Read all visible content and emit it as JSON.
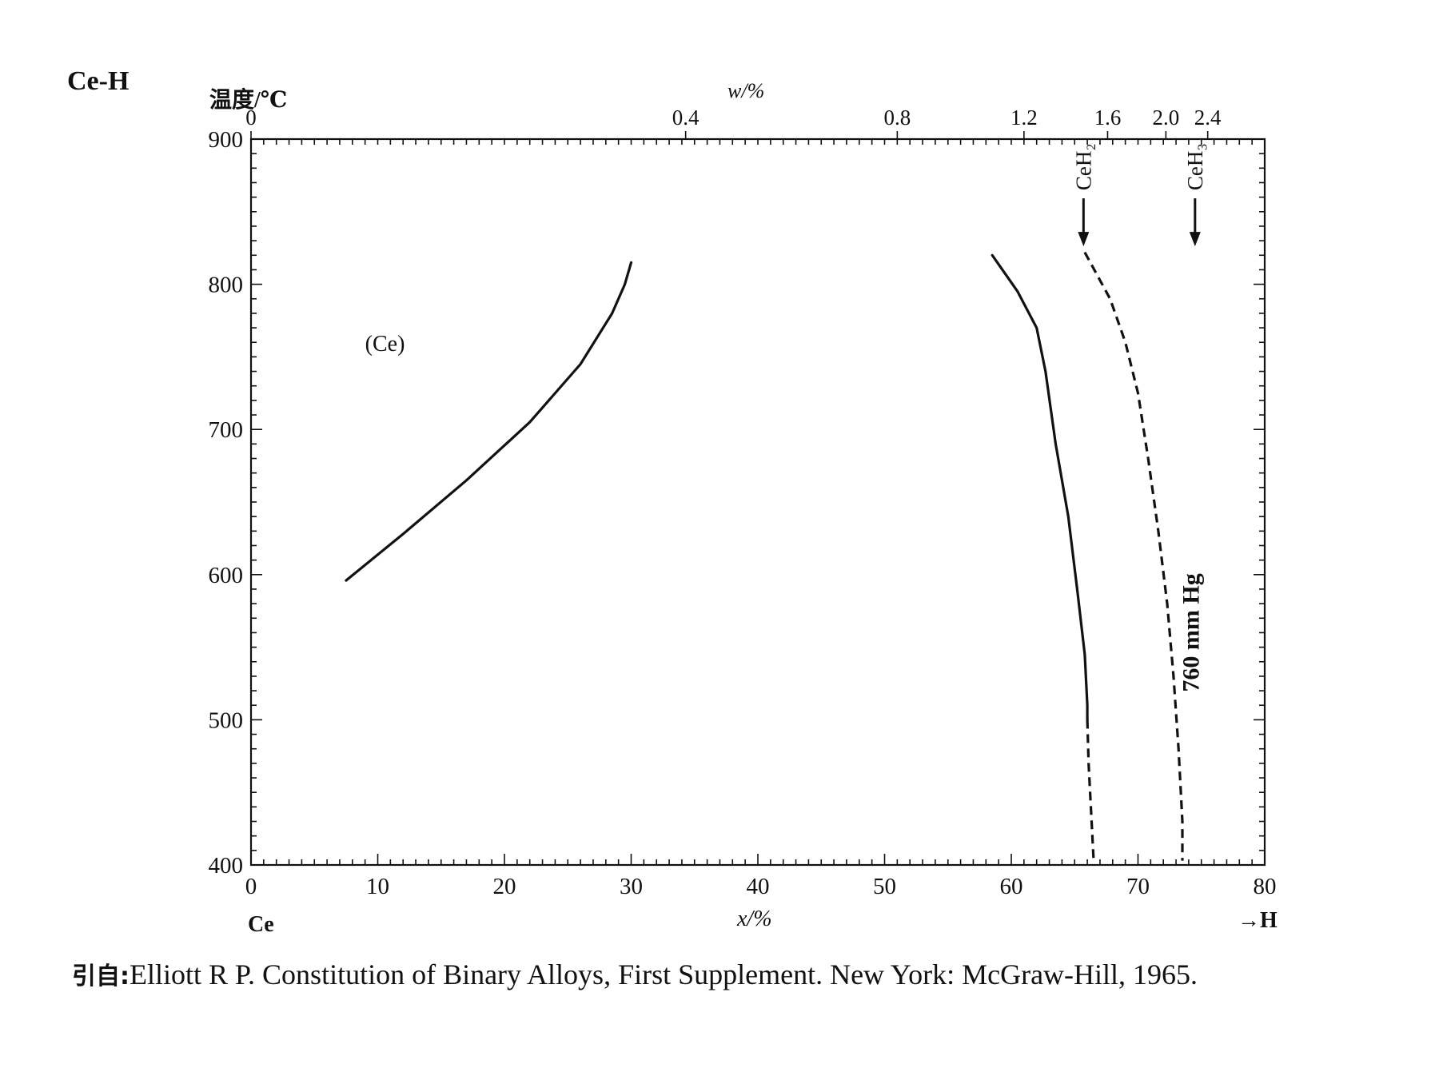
{
  "chart_data": {
    "type": "line",
    "title": "Ce-H",
    "ylabel": "温度/℃",
    "xlabel": "x/%",
    "x2label": "w/%",
    "ylim": [
      400,
      900
    ],
    "xlim": [
      0,
      80
    ],
    "y_ticks": [
      400,
      500,
      600,
      700,
      800,
      900
    ],
    "x_ticks": [
      0,
      10,
      20,
      30,
      40,
      50,
      60,
      70,
      80
    ],
    "x2_ticks": [
      {
        "label": "0",
        "x": 0
      },
      {
        "label": "0.4",
        "x": 34.3
      },
      {
        "label": "0.8",
        "x": 51.0
      },
      {
        "label": "1.2",
        "x": 61.0
      },
      {
        "label": "1.6",
        "x": 67.6
      },
      {
        "label": "2.0",
        "x": 72.2
      },
      {
        "label": "2.4",
        "x": 75.5
      }
    ],
    "grid": false,
    "left_element": "Ce",
    "right_element": "→H",
    "series": [
      {
        "style": "solid",
        "points": [
          [
            7.5,
            596
          ],
          [
            12,
            628
          ],
          [
            17,
            665
          ],
          [
            22,
            705
          ],
          [
            26,
            745
          ],
          [
            28.5,
            780
          ],
          [
            29.5,
            800
          ],
          [
            30,
            815
          ]
        ]
      },
      {
        "style": "solid",
        "points": [
          [
            58.5,
            820
          ],
          [
            60.5,
            795
          ],
          [
            62,
            770
          ],
          [
            62.7,
            740
          ],
          [
            63.5,
            690
          ],
          [
            64.5,
            640
          ],
          [
            65.2,
            590
          ],
          [
            65.8,
            545
          ],
          [
            66,
            510
          ],
          [
            66,
            500
          ]
        ]
      },
      {
        "style": "dashed",
        "points": [
          [
            66,
            500
          ],
          [
            66.1,
            470
          ],
          [
            66.4,
            420
          ],
          [
            66.5,
            403
          ]
        ]
      },
      {
        "style": "dashed",
        "points": [
          [
            65.8,
            822
          ],
          [
            67.8,
            790
          ],
          [
            69,
            760
          ],
          [
            70,
            725
          ],
          [
            70.8,
            680
          ],
          [
            71.6,
            630
          ],
          [
            72.3,
            580
          ],
          [
            72.8,
            530
          ],
          [
            73.2,
            480
          ],
          [
            73.5,
            430
          ],
          [
            73.5,
            403
          ]
        ]
      }
    ],
    "annotations": [
      {
        "text": "(Ce)",
        "x": 9,
        "y": 754
      },
      {
        "text": "CeH₂",
        "x": 65.7,
        "y": 868,
        "arrow": true
      },
      {
        "text": "CeH₃",
        "x": 74.5,
        "y": 868,
        "arrow": true
      },
      {
        "text": "760 mm Hg",
        "x": 74.8,
        "y": 560
      }
    ]
  },
  "citation": {
    "prefix": "引自:",
    "text": "Elliott R P.  Constitution of Binary Alloys, First Supplement.  New York: McGraw-Hill, 1965."
  }
}
